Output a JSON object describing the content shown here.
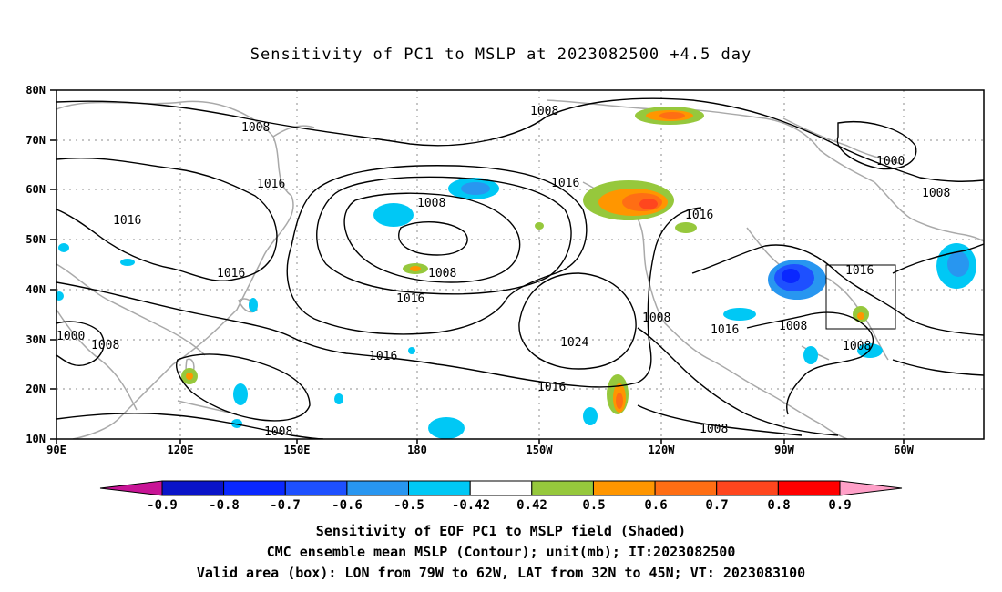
{
  "title": "Sensitivity of PC1 to MSLP at 2023082500 +4.5 day",
  "map": {
    "lon_ticks": [
      "90E",
      "120E",
      "150E",
      "180",
      "150W",
      "120W",
      "90W",
      "60W"
    ],
    "lat_ticks": [
      "80N",
      "70N",
      "60N",
      "50N",
      "40N",
      "30N",
      "20N",
      "10N"
    ],
    "contour_labels": [
      {
        "text": "1008"
      },
      {
        "text": "1008"
      },
      {
        "text": "1000"
      },
      {
        "text": "1008"
      },
      {
        "text": "1016"
      },
      {
        "text": "1016"
      },
      {
        "text": "1008"
      },
      {
        "text": "1016"
      },
      {
        "text": "1016"
      },
      {
        "text": "1008"
      },
      {
        "text": "1016"
      },
      {
        "text": "1016"
      },
      {
        "text": "1024"
      },
      {
        "text": "1008"
      },
      {
        "text": "1016"
      },
      {
        "text": "1016"
      },
      {
        "text": "1008"
      },
      {
        "text": "1000"
      },
      {
        "text": "1008"
      },
      {
        "text": "1016"
      },
      {
        "text": "1008"
      },
      {
        "text": "1008"
      },
      {
        "text": "1016"
      },
      {
        "text": "1008"
      }
    ],
    "box": {
      "lon_from": "79W",
      "lon_to": "62W",
      "lat_from": "32N",
      "lat_to": "45N"
    },
    "colors": {
      "land": "#a9a9a9",
      "contour": "#000000",
      "grid": "#8c8c8c"
    }
  },
  "colorbar": {
    "labels": [
      "-0.9",
      "-0.8",
      "-0.7",
      "-0.6",
      "-0.5",
      "-0.42",
      "0.42",
      "0.5",
      "0.6",
      "0.7",
      "0.8",
      "0.9"
    ],
    "colors": [
      "#0a14c8",
      "#0a28ff",
      "#1e50ff",
      "#2896f0",
      "#00c8f5",
      "#ffffff",
      "#96c83c",
      "#ff9600",
      "#ff6e14",
      "#ff461e",
      "#ff0000"
    ],
    "low_end_color": "#c81496",
    "high_end_color": "#ffa0c8"
  },
  "captions": {
    "line1": "Sensitivity of EOF PC1 to MSLP field (Shaded)",
    "line2": "CMC ensemble mean MSLP (Contour); unit(mb); IT:2023082500",
    "line3": "Valid area (box): LON from 79W to 62W, LAT from 32N to 45N; VT: 2023083100"
  }
}
